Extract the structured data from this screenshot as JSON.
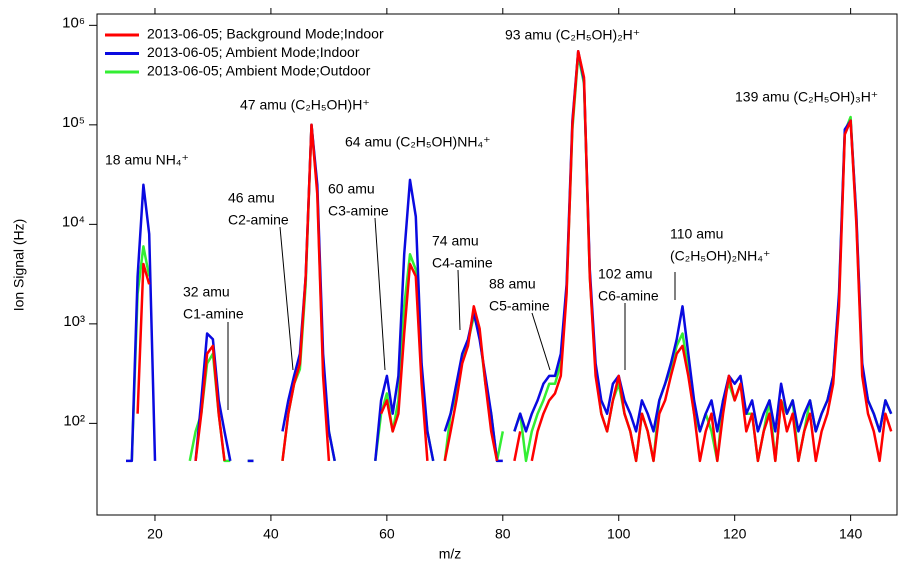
{
  "chart_data": {
    "type": "line",
    "xlabel": "m/z",
    "ylabel": "Ion Signal (Hz)",
    "ylog": true,
    "grid": false,
    "legend": "upper left",
    "xlim": [
      10,
      148
    ],
    "ylim": [
      12,
      1300000
    ],
    "xticks": [
      20,
      40,
      60,
      80,
      100,
      120,
      140
    ],
    "yticks": [
      {
        "value": 100,
        "label": "10²"
      },
      {
        "value": 1000,
        "label": "10³"
      },
      {
        "value": 10000,
        "label": "10⁴"
      },
      {
        "value": 100000,
        "label": "10⁵"
      },
      {
        "value": 1000000,
        "label": "10⁶"
      }
    ],
    "x": [
      15,
      16,
      17,
      18,
      19,
      20,
      21,
      22,
      23,
      24,
      25,
      26,
      27,
      28,
      29,
      30,
      31,
      32,
      33,
      34,
      35,
      36,
      37,
      38,
      39,
      40,
      41,
      42,
      43,
      44,
      45,
      46,
      47,
      48,
      49,
      50,
      51,
      52,
      53,
      54,
      55,
      56,
      57,
      58,
      59,
      60,
      61,
      62,
      63,
      64,
      65,
      66,
      67,
      68,
      69,
      70,
      71,
      72,
      73,
      74,
      75,
      76,
      77,
      78,
      79,
      80,
      81,
      82,
      83,
      84,
      85,
      86,
      87,
      88,
      89,
      90,
      91,
      92,
      93,
      94,
      95,
      96,
      97,
      98,
      99,
      100,
      101,
      102,
      103,
      104,
      105,
      106,
      107,
      108,
      109,
      110,
      111,
      112,
      113,
      114,
      115,
      116,
      117,
      118,
      119,
      120,
      121,
      122,
      123,
      124,
      125,
      126,
      127,
      128,
      129,
      130,
      131,
      132,
      133,
      134,
      135,
      136,
      137,
      138,
      139,
      140,
      141,
      142,
      143,
      144,
      145,
      146,
      147
    ],
    "series": [
      {
        "name": "2013-06-05; Background Mode;Indoor",
        "color": "#ff0000",
        "values": [
          null,
          null,
          125,
          4000,
          2500,
          null,
          null,
          null,
          null,
          null,
          null,
          null,
          42,
          125,
          500,
          600,
          125,
          42,
          null,
          null,
          null,
          42,
          null,
          null,
          null,
          null,
          null,
          42,
          125,
          250,
          400,
          3000,
          100000,
          20000,
          300,
          42,
          null,
          null,
          null,
          null,
          null,
          null,
          null,
          null,
          125,
          170,
          83,
          125,
          800,
          4000,
          3000,
          250,
          42,
          null,
          null,
          42,
          83,
          170,
          400,
          600,
          1500,
          900,
          250,
          83,
          42,
          null,
          null,
          42,
          83,
          null,
          42,
          83,
          125,
          170,
          200,
          300,
          2000,
          100000,
          550000,
          300000,
          3000,
          300,
          125,
          83,
          170,
          300,
          125,
          83,
          42,
          125,
          83,
          42,
          125,
          170,
          300,
          500,
          600,
          300,
          125,
          42,
          83,
          125,
          42,
          125,
          300,
          170,
          250,
          83,
          125,
          42,
          83,
          125,
          42,
          170,
          83,
          125,
          42,
          83,
          125,
          42,
          83,
          125,
          250,
          1500,
          80000,
          110000,
          10000,
          300,
          125,
          83,
          42,
          125,
          83
        ]
      },
      {
        "name": "2013-06-05; Ambient Mode;Indoor",
        "color": "#0a0ae0",
        "values": [
          42,
          42,
          3000,
          25000,
          8000,
          42,
          null,
          null,
          null,
          null,
          null,
          null,
          42,
          170,
          800,
          700,
          170,
          83,
          42,
          null,
          null,
          42,
          42,
          null,
          null,
          null,
          null,
          83,
          170,
          300,
          500,
          3000,
          100000,
          25000,
          500,
          83,
          42,
          null,
          null,
          null,
          null,
          null,
          null,
          42,
          170,
          300,
          125,
          300,
          5000,
          28000,
          12000,
          400,
          83,
          42,
          null,
          83,
          125,
          250,
          500,
          700,
          1300,
          700,
          300,
          125,
          42,
          42,
          null,
          83,
          125,
          83,
          125,
          170,
          250,
          300,
          300,
          500,
          2500,
          110000,
          550000,
          280000,
          3500,
          400,
          170,
          125,
          250,
          300,
          170,
          125,
          83,
          170,
          125,
          83,
          170,
          250,
          400,
          700,
          1500,
          500,
          170,
          83,
          125,
          170,
          83,
          170,
          300,
          250,
          300,
          125,
          170,
          83,
          125,
          170,
          83,
          250,
          125,
          170,
          83,
          125,
          170,
          83,
          125,
          170,
          300,
          2000,
          90000,
          110000,
          12000,
          400,
          170,
          125,
          83,
          170,
          125
        ]
      },
      {
        "name": "2013-06-05; Ambient Mode;Outdoor",
        "color": "#33ee33",
        "values": [
          null,
          42,
          2000,
          6000,
          3000,
          null,
          null,
          null,
          null,
          null,
          null,
          42,
          83,
          125,
          400,
          500,
          125,
          42,
          42,
          null,
          null,
          42,
          42,
          null,
          null,
          42,
          null,
          42,
          125,
          250,
          350,
          2500,
          100000,
          22000,
          350,
          83,
          42,
          null,
          null,
          null,
          null,
          null,
          null,
          42,
          125,
          200,
          83,
          170,
          1500,
          5000,
          3500,
          300,
          83,
          42,
          null,
          42,
          125,
          200,
          450,
          650,
          1200,
          800,
          250,
          125,
          42,
          83,
          null,
          83,
          125,
          42,
          83,
          125,
          170,
          250,
          250,
          400,
          2200,
          90000,
          500000,
          260000,
          3000,
          350,
          125,
          83,
          170,
          250,
          125,
          83,
          42,
          125,
          83,
          42,
          170,
          250,
          350,
          600,
          800,
          350,
          125,
          83,
          125,
          83,
          42,
          170,
          250,
          170,
          250,
          125,
          125,
          42,
          83,
          170,
          42,
          170,
          125,
          170,
          42,
          83,
          170,
          83,
          125,
          170,
          300,
          1800,
          85000,
          120000,
          11000,
          350,
          170,
          125,
          83,
          170,
          125
        ]
      }
    ],
    "annotations": [
      {
        "lines": [
          "18 amu NH₄⁺"
        ]
      },
      {
        "lines": [
          "32 amu",
          "C1-amine"
        ]
      },
      {
        "lines": [
          "46 amu",
          "C2-amine"
        ]
      },
      {
        "lines": [
          "47 amu (C₂H₅OH)H⁺"
        ]
      },
      {
        "lines": [
          "60 amu",
          "C3-amine"
        ]
      },
      {
        "lines": [
          "64 amu (C₂H₅OH)NH₄⁺"
        ]
      },
      {
        "lines": [
          "74 amu",
          "C4-amine"
        ]
      },
      {
        "lines": [
          "88 amu",
          "C5-amine"
        ]
      },
      {
        "lines": [
          "93 amu (C₂H₅OH)₂H⁺"
        ]
      },
      {
        "lines": [
          "102 amu",
          "C6-amine"
        ]
      },
      {
        "lines": [
          "110 amu",
          "(C₂H₅OH)₂NH₄⁺"
        ]
      },
      {
        "lines": [
          "139 amu (C₂H₅OH)₃H⁺"
        ]
      }
    ]
  }
}
